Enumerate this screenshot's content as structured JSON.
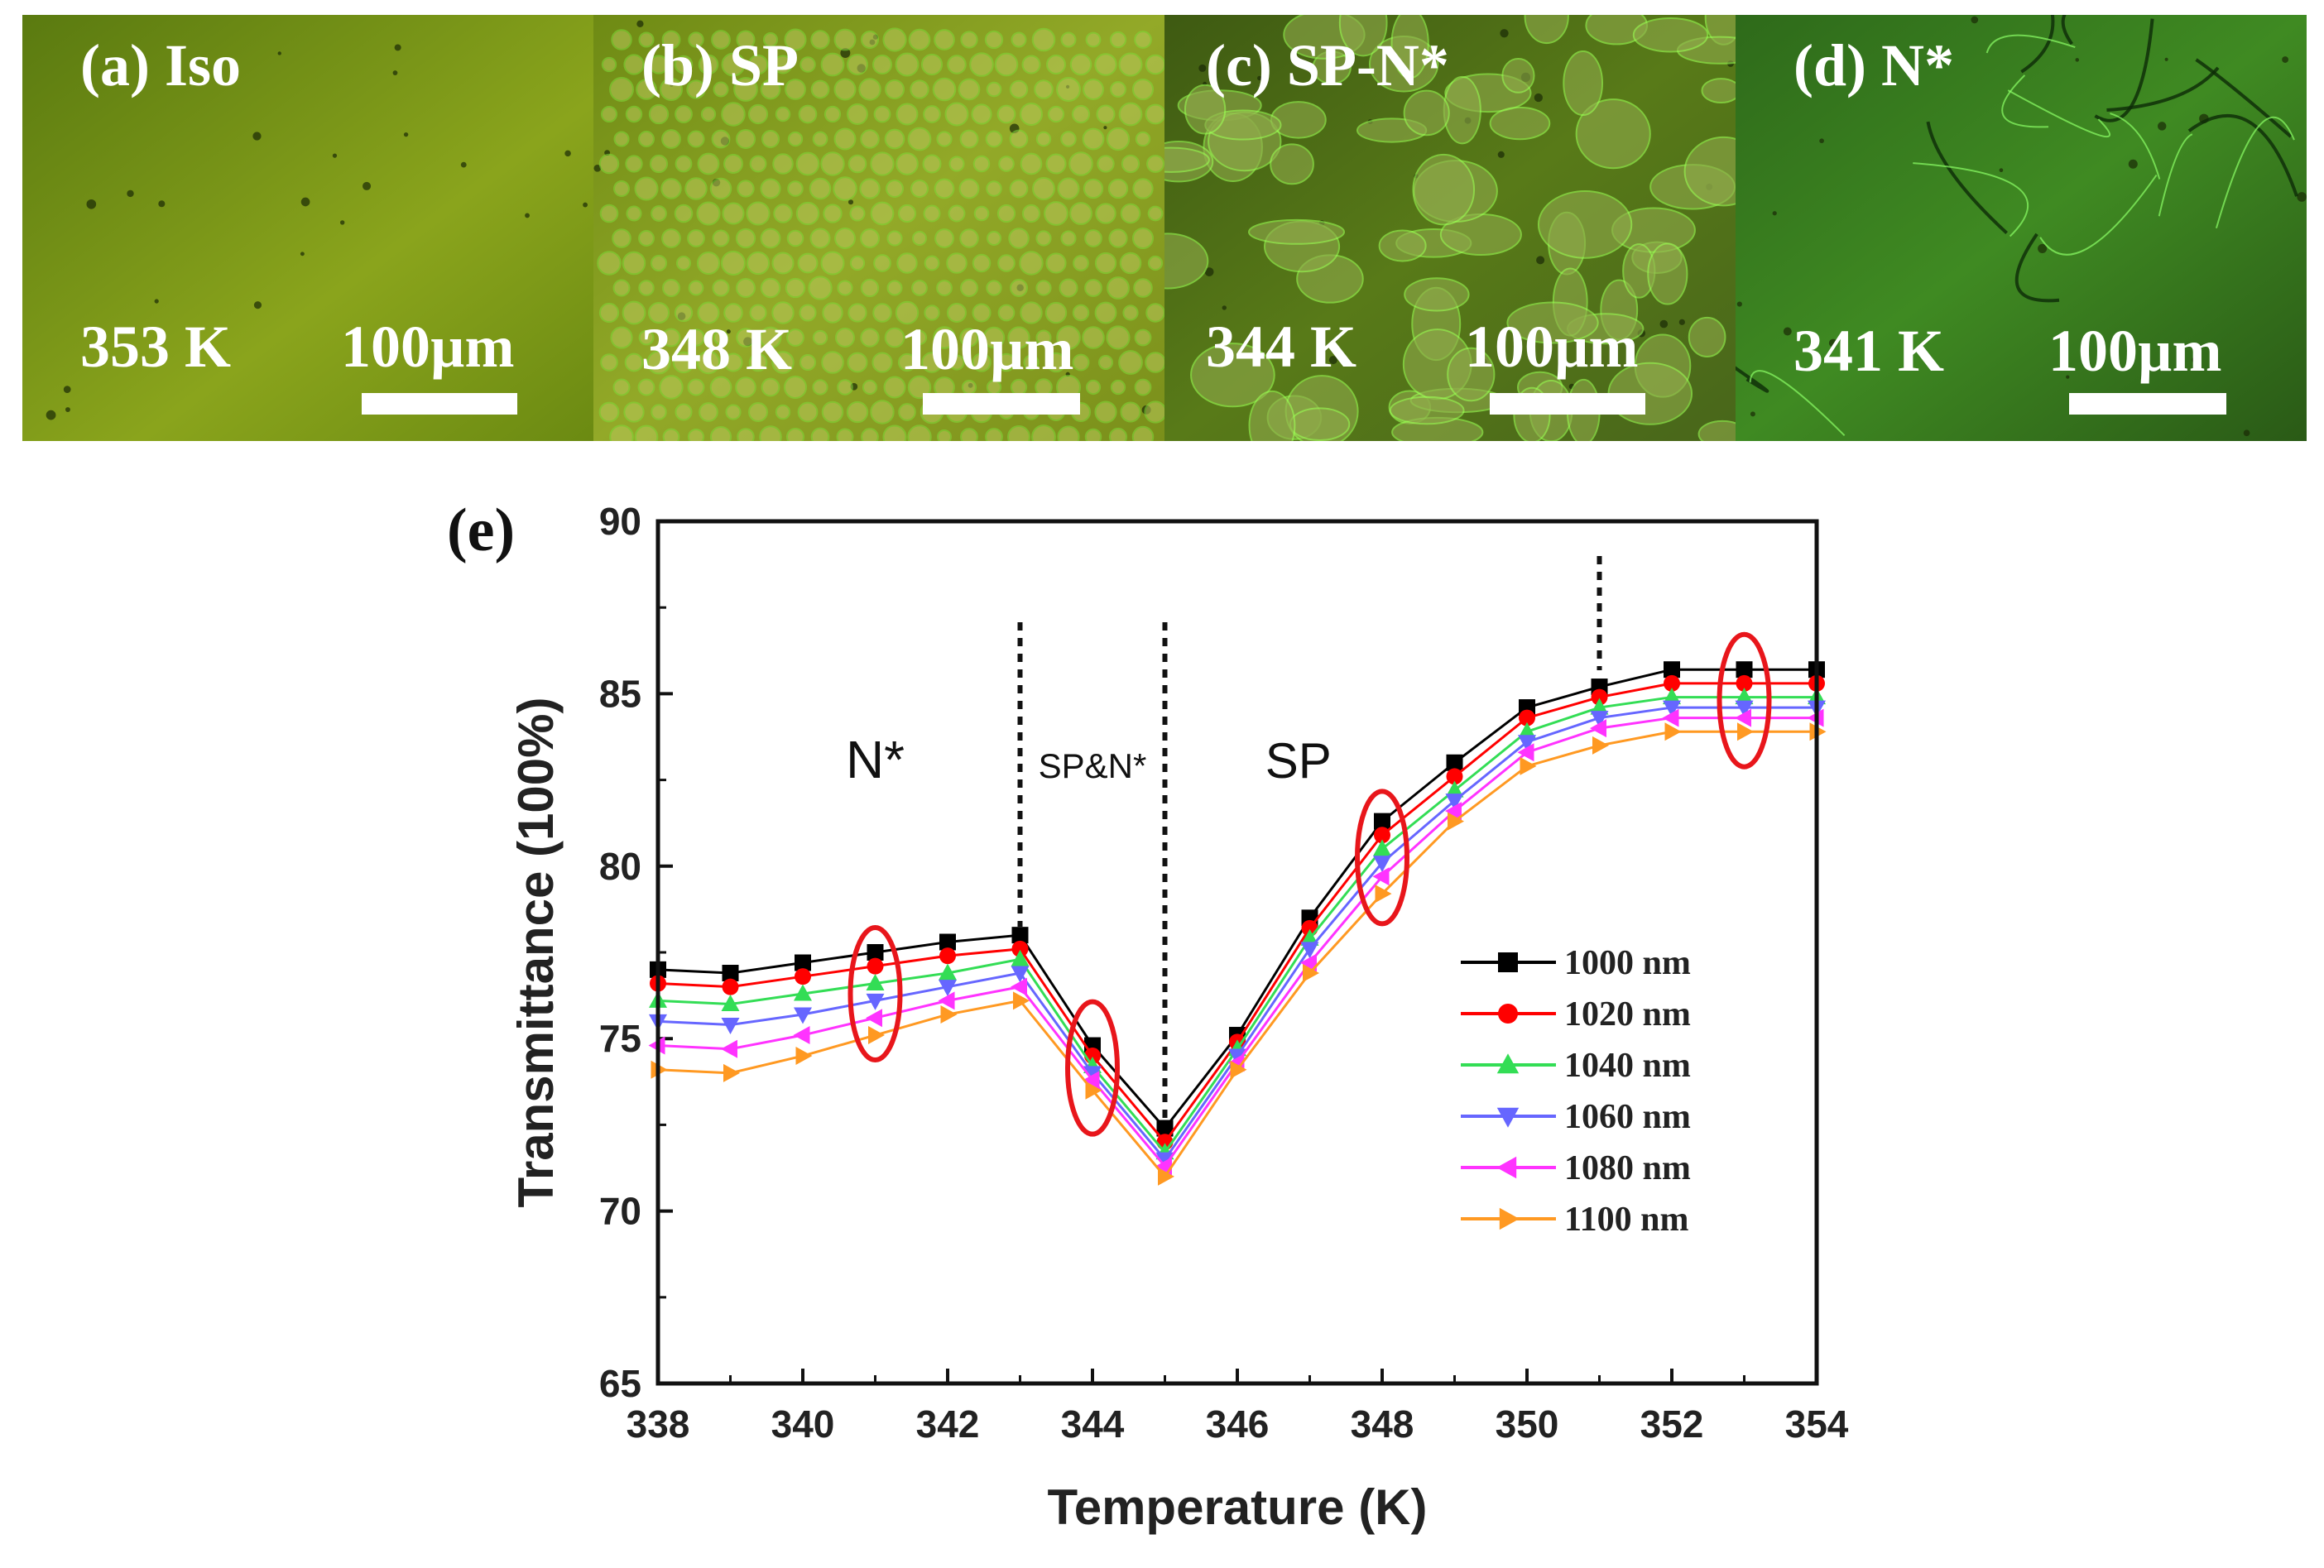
{
  "panels": [
    {
      "label": "(a) Iso",
      "temp": "353 K",
      "scale": "100µm",
      "bg": [
        "#5a7a10",
        "#8aa41c",
        "#6b8a12"
      ],
      "pattern": "none"
    },
    {
      "label": "(b) SP",
      "temp": "348 K",
      "scale": "100µm",
      "bg": [
        "#6e8a14",
        "#93a928",
        "#7a8f1a"
      ],
      "pattern": "dots"
    },
    {
      "label": "(c) SP-N*",
      "temp": "344 K",
      "scale": "100µm",
      "bg": [
        "#3e5a12",
        "#587a18",
        "#48661a"
      ],
      "pattern": "blobs"
    },
    {
      "label": "(d) N*",
      "temp": "341 K",
      "scale": "100µm",
      "bg": [
        "#2e6a1a",
        "#3f8a22",
        "#2a5a16"
      ],
      "pattern": "lines"
    }
  ],
  "chart_data": {
    "type": "line",
    "panel_label": "(e)",
    "xlabel": "Temperature (K)",
    "ylabel": "Transmittance (100%)",
    "xlim": [
      338,
      354
    ],
    "ylim": [
      65,
      90
    ],
    "xticks": [
      338,
      340,
      342,
      344,
      346,
      348,
      350,
      352,
      354
    ],
    "yticks": [
      65,
      70,
      75,
      80,
      85,
      90
    ],
    "x": [
      338,
      339,
      340,
      341,
      342,
      343,
      344,
      345,
      346,
      347,
      348,
      349,
      350,
      351,
      352,
      353,
      354
    ],
    "series": [
      {
        "name": "1000 nm",
        "color": "#000000",
        "marker": "square",
        "values": [
          77.0,
          76.9,
          77.2,
          77.5,
          77.8,
          78.0,
          74.8,
          72.4,
          75.1,
          78.5,
          81.3,
          83.0,
          84.6,
          85.2,
          85.7,
          85.7,
          85.7
        ]
      },
      {
        "name": "1020 nm",
        "color": "#ff0000",
        "marker": "circle",
        "values": [
          76.6,
          76.5,
          76.8,
          77.1,
          77.4,
          77.6,
          74.5,
          72.0,
          74.9,
          78.2,
          80.9,
          82.6,
          84.3,
          84.9,
          85.3,
          85.3,
          85.3
        ]
      },
      {
        "name": "1040 nm",
        "color": "#33dd55",
        "marker": "triangle-up",
        "values": [
          76.1,
          76.0,
          76.3,
          76.6,
          76.9,
          77.3,
          74.2,
          71.7,
          74.7,
          77.9,
          80.5,
          82.2,
          83.9,
          84.6,
          84.9,
          84.9,
          84.9
        ]
      },
      {
        "name": "1060 nm",
        "color": "#6666ff",
        "marker": "triangle-down",
        "values": [
          75.5,
          75.4,
          75.7,
          76.1,
          76.5,
          76.9,
          74.0,
          71.5,
          74.5,
          77.6,
          80.1,
          81.9,
          83.6,
          84.3,
          84.6,
          84.6,
          84.6
        ]
      },
      {
        "name": "1080 nm",
        "color": "#ff33ff",
        "marker": "triangle-left",
        "values": [
          74.8,
          74.7,
          75.1,
          75.6,
          76.1,
          76.5,
          73.8,
          71.3,
          74.3,
          77.2,
          79.7,
          81.6,
          83.3,
          84.0,
          84.3,
          84.3,
          84.3
        ]
      },
      {
        "name": "1100 nm",
        "color": "#ff9922",
        "marker": "triangle-right",
        "values": [
          74.1,
          74.0,
          74.5,
          75.1,
          75.7,
          76.1,
          73.5,
          71.0,
          74.1,
          76.9,
          79.2,
          81.3,
          82.9,
          83.5,
          83.9,
          83.9,
          83.9
        ]
      }
    ],
    "phase_labels": [
      {
        "text": "N*",
        "x": 341.0
      },
      {
        "text": "SP&N*",
        "x": 344.0
      },
      {
        "text": "SP",
        "x": 346.5
      }
    ],
    "phase_boundaries": [
      343,
      345,
      351
    ],
    "highlight_x": [
      341,
      344,
      348,
      353
    ],
    "grid": false,
    "legend_position": "right"
  }
}
